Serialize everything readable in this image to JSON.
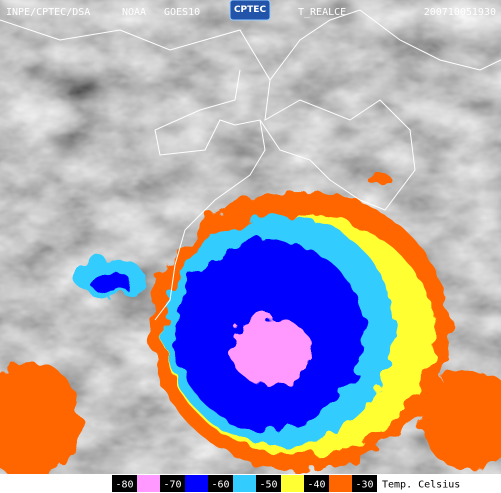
{
  "header": {
    "source": "INPE/CPTEC/DSA",
    "agency": "NOAA",
    "satellite": "GOES10",
    "logo": "CPTEC",
    "product": "T_REALCE",
    "timestamp": "200710051930"
  },
  "legend": {
    "items": [
      {
        "label": "-80",
        "color": "#ff99ff"
      },
      {
        "label": "-70",
        "color": "#0000ff"
      },
      {
        "label": "-60",
        "color": "#33ccff"
      },
      {
        "label": "-50",
        "color": "#ffff33"
      },
      {
        "label": "-40",
        "color": "#ff6600"
      },
      {
        "label": "-30",
        "color": "#808080"
      }
    ],
    "unit": "Temp. Celsius"
  }
}
